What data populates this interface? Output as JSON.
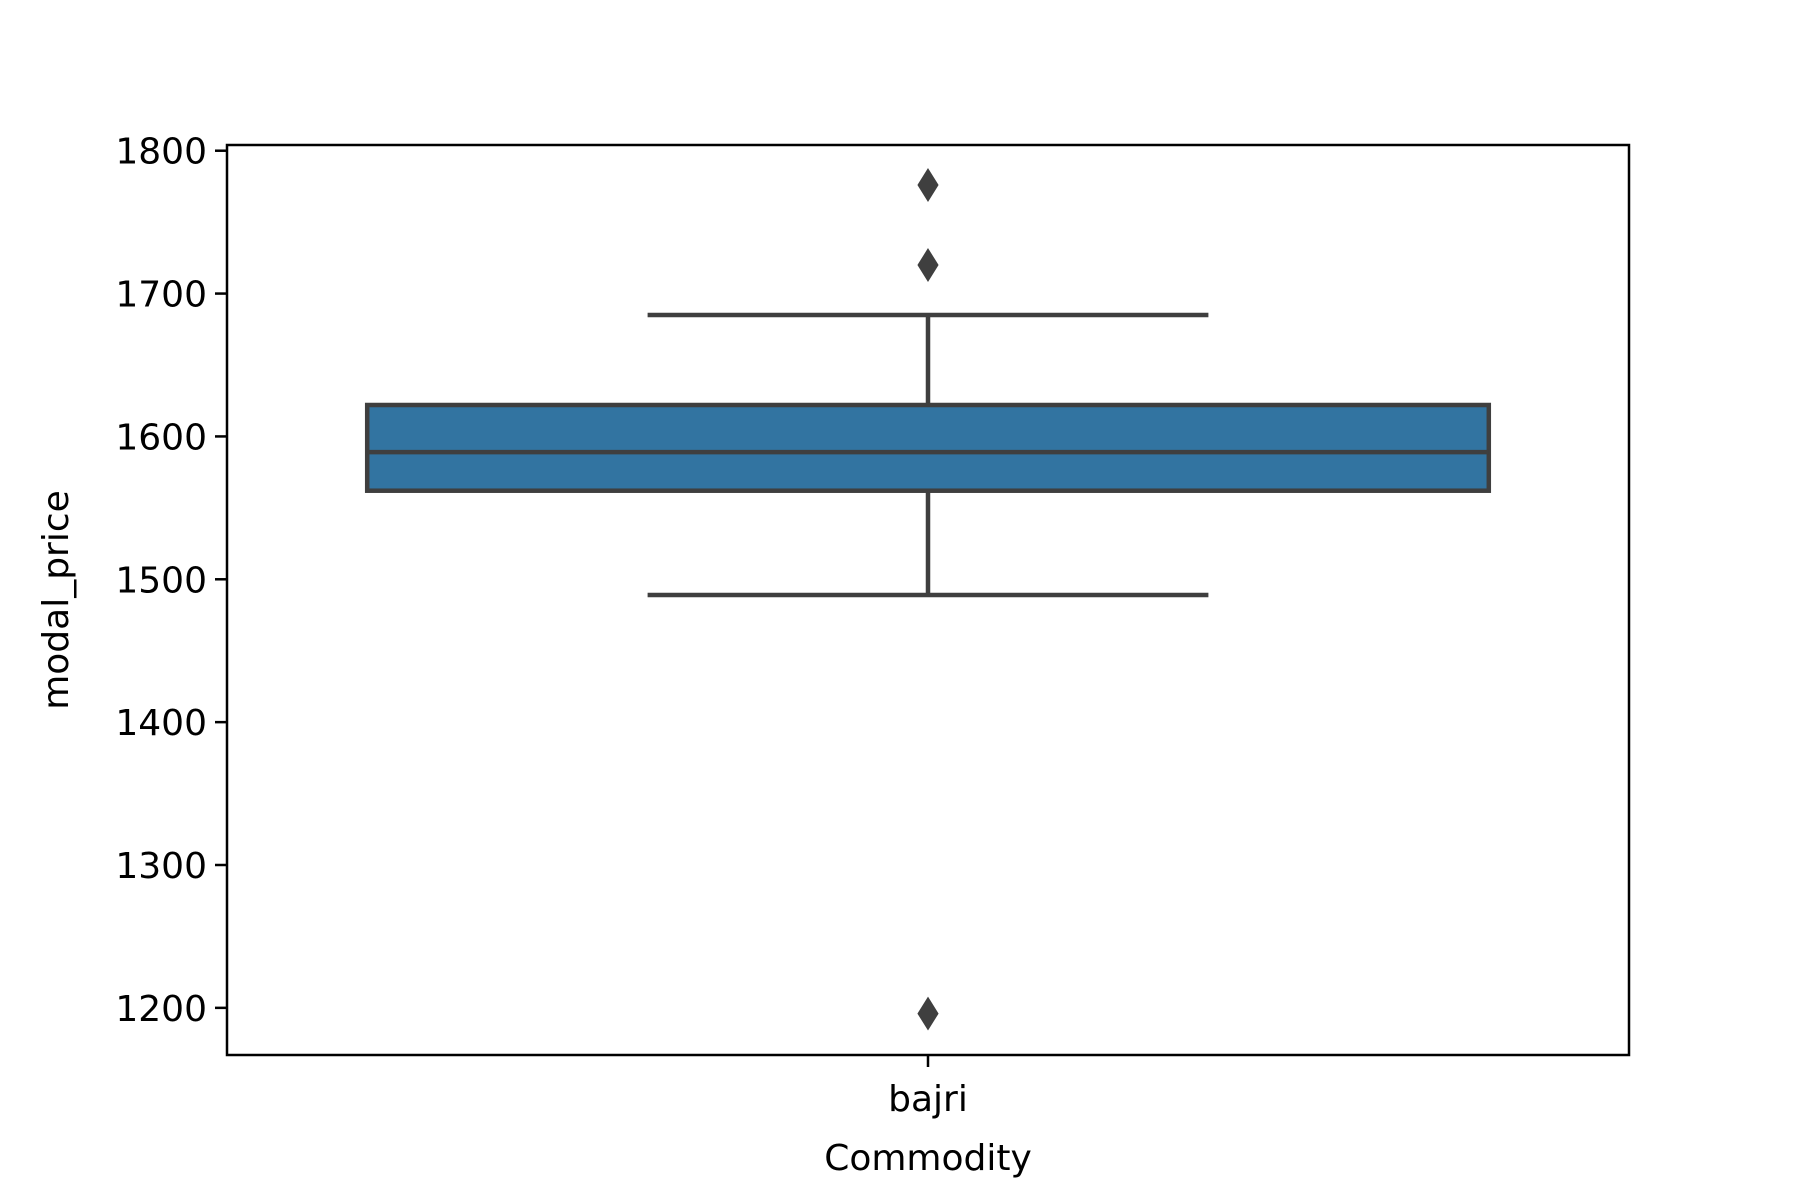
{
  "chart_data": {
    "type": "box",
    "title": "",
    "xlabel": "Commodity",
    "ylabel": "modal_price",
    "categories": [
      "bajri"
    ],
    "ylim": [
      1167,
      1804
    ],
    "yticks": [
      1200,
      1300,
      1400,
      1500,
      1600,
      1700,
      1800
    ],
    "ytick_labels": [
      "1200",
      "1300",
      "1400",
      "1500",
      "1600",
      "1700",
      "1800"
    ],
    "grid": false,
    "boxes": [
      {
        "category": "bajri",
        "whisker_low": 1489,
        "q1": 1562,
        "median": 1589,
        "q3": 1622,
        "whisker_high": 1685,
        "outliers": [
          1776,
          1720,
          1196
        ]
      }
    ],
    "colors": {
      "box_fill": "#3274a1",
      "line": "#3f3f3f",
      "axes": "#000000"
    }
  }
}
